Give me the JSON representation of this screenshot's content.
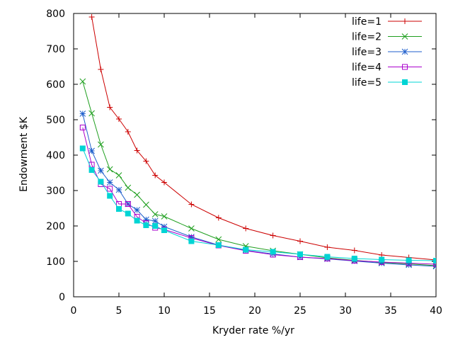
{
  "chart_data": {
    "type": "line",
    "title": "",
    "xlabel": "Kryder rate %/yr",
    "ylabel": "Endowment $K",
    "xlim": [
      0,
      40
    ],
    "ylim": [
      0,
      800
    ],
    "xticks": [
      0,
      5,
      10,
      15,
      20,
      25,
      30,
      35,
      40
    ],
    "yticks": [
      0,
      100,
      200,
      300,
      400,
      500,
      600,
      700,
      800
    ],
    "legend_position": "top-right",
    "grid": false,
    "x": [
      1,
      2,
      3,
      4,
      5,
      6,
      7,
      8,
      9,
      10,
      13,
      16,
      19,
      22,
      25,
      28,
      31,
      34,
      37,
      40
    ],
    "series": [
      {
        "name": "life=1",
        "color": "#cc0000",
        "marker": "plus",
        "values": [
          null,
          790,
          642,
          535,
          502,
          466,
          413,
          383,
          343,
          323,
          261,
          223,
          193,
          173,
          157,
          140,
          131,
          118,
          111,
          104
        ]
      },
      {
        "name": "life=2",
        "color": "#1f9f1f",
        "marker": "cross",
        "values": [
          608,
          518,
          430,
          360,
          343,
          308,
          288,
          260,
          233,
          227,
          193,
          162,
          143,
          130,
          120,
          110,
          103,
          97,
          93,
          88
        ]
      },
      {
        "name": "life=3",
        "color": "#1f5fcc",
        "marker": "star",
        "values": [
          517,
          412,
          356,
          323,
          302,
          262,
          245,
          218,
          214,
          198,
          169,
          146,
          131,
          121,
          112,
          107,
          101,
          95,
          90,
          86
        ]
      },
      {
        "name": "life=4",
        "color": "#aa00cc",
        "marker": "open-square",
        "values": [
          478,
          373,
          318,
          305,
          262,
          262,
          226,
          208,
          195,
          190,
          166,
          145,
          130,
          119,
          112,
          108,
          102,
          98,
          95,
          92
        ]
      },
      {
        "name": "life=5",
        "color": "#00d4d4",
        "marker": "filled-square",
        "values": [
          419,
          358,
          325,
          285,
          248,
          235,
          215,
          202,
          200,
          188,
          157,
          146,
          133,
          127,
          120,
          113,
          108,
          105,
          103,
          102
        ]
      }
    ]
  }
}
